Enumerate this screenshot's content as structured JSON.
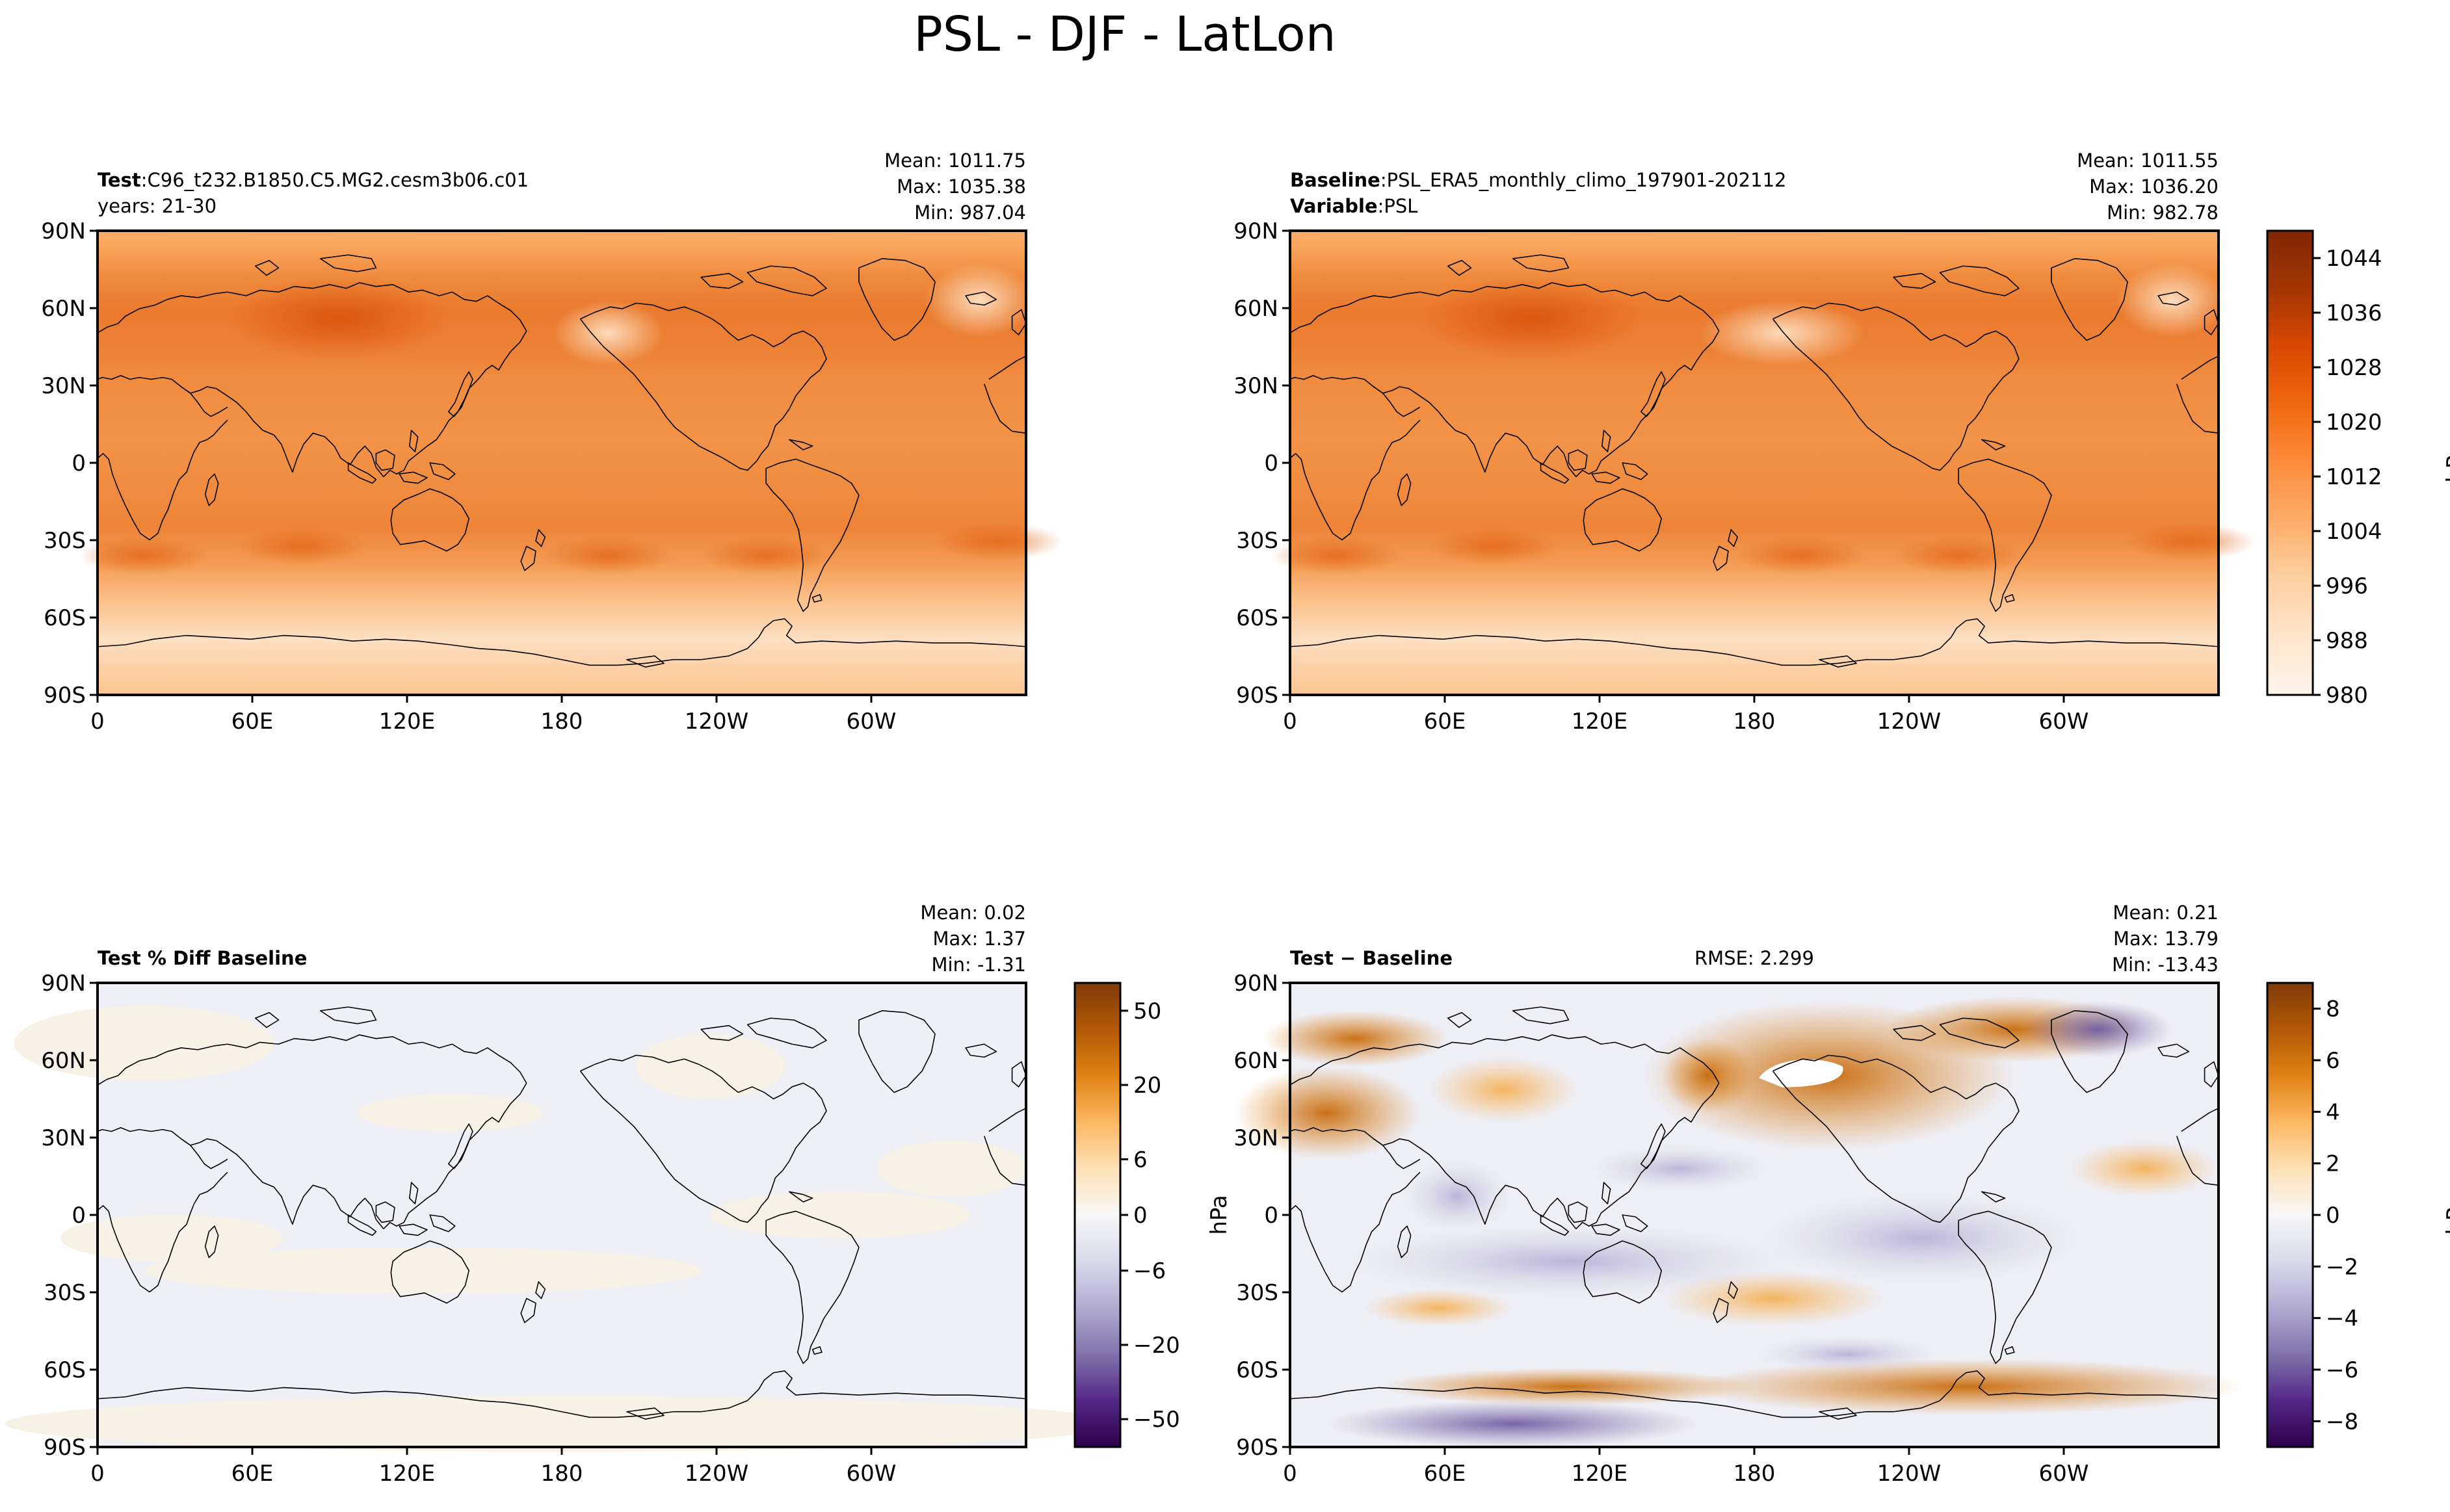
{
  "title": "PSL - DJF - LatLon",
  "colors": {
    "oranges": [
      "#fff5eb",
      "#fee6ce",
      "#fdd0a2",
      "#fdae6b",
      "#fd8d3c",
      "#f16913",
      "#d94801",
      "#a63603",
      "#7f2704"
    ],
    "puor": [
      "#2d004b",
      "#542788",
      "#8073ac",
      "#b2abd2",
      "#d8daeb",
      "#f7f7f7",
      "#fee0b6",
      "#fdb863",
      "#e08214",
      "#b35806",
      "#7f3b08"
    ],
    "coast": "#000000"
  },
  "chart_data": [
    {
      "id": "test",
      "type": "heatmap",
      "title_bold": "Test",
      "title_sep": ":",
      "title_text": "C96_t232.B1850.C5.MG2.cesm3b06.c01",
      "title_line2": "years: 21-30",
      "stats": [
        "Mean: 1011.75",
        "Max: 1035.38",
        "Min: 987.04"
      ],
      "x_ticks": [
        "0",
        "60E",
        "120E",
        "180",
        "120W",
        "60W"
      ],
      "y_ticks": [
        "90N",
        "60N",
        "30N",
        "0",
        "30S",
        "60S",
        "90S"
      ],
      "colormap": "Oranges",
      "crange": [
        980,
        1048
      ]
    },
    {
      "id": "baseline",
      "type": "heatmap",
      "title_bold": "Baseline",
      "title_sep": ":",
      "title_text": "PSL_ERA5_monthly_climo_197901-202112",
      "title_bold2": "Variable",
      "title_text2": "PSL",
      "stats": [
        "Mean: 1011.55",
        "Max: 1036.20",
        "Min: 982.78"
      ],
      "x_ticks": [
        "0",
        "60E",
        "120E",
        "180",
        "120W",
        "60W"
      ],
      "y_ticks": [
        "90N",
        "60N",
        "30N",
        "0",
        "30S",
        "60S",
        "90S"
      ],
      "colormap": "Oranges",
      "crange": [
        980,
        1048
      ],
      "colorbar": {
        "label": "hPa",
        "ticks": [
          "1044",
          "1036",
          "1028",
          "1020",
          "1012",
          "1004",
          "996",
          "988",
          "980"
        ]
      }
    },
    {
      "id": "pctdiff",
      "type": "heatmap",
      "title_bold": "Test % Diff Baseline",
      "stats": [
        "Mean:  0.02",
        "Max:  1.37",
        "Min: -1.31"
      ],
      "x_ticks": [
        "0",
        "60E",
        "120E",
        "180",
        "120W",
        "60W"
      ],
      "y_ticks": [
        "90N",
        "60N",
        "30N",
        "0",
        "30S",
        "60S",
        "90S"
      ],
      "colormap": "PuOr_r",
      "colorbar": {
        "label": "hPa",
        "ticks": [
          "50",
          "20",
          "6",
          "0",
          "−6",
          "−20",
          "−50"
        ]
      }
    },
    {
      "id": "diff",
      "type": "heatmap",
      "title_bold": "Test − Baseline",
      "rmse": "RMSE: 2.299",
      "stats": [
        "Mean:  0.21",
        "Max: 13.79",
        "Min: -13.43"
      ],
      "x_ticks": [
        "0",
        "60E",
        "120E",
        "180",
        "120W",
        "60W"
      ],
      "y_ticks": [
        "90N",
        "60N",
        "30N",
        "0",
        "30S",
        "60S",
        "90S"
      ],
      "colormap": "PuOr_r",
      "crange": [
        -9,
        9
      ],
      "colorbar": {
        "label": "hPa",
        "ticks": [
          "8",
          "6",
          "4",
          "2",
          "0",
          "−2",
          "−4",
          "−6",
          "−8"
        ]
      }
    }
  ]
}
